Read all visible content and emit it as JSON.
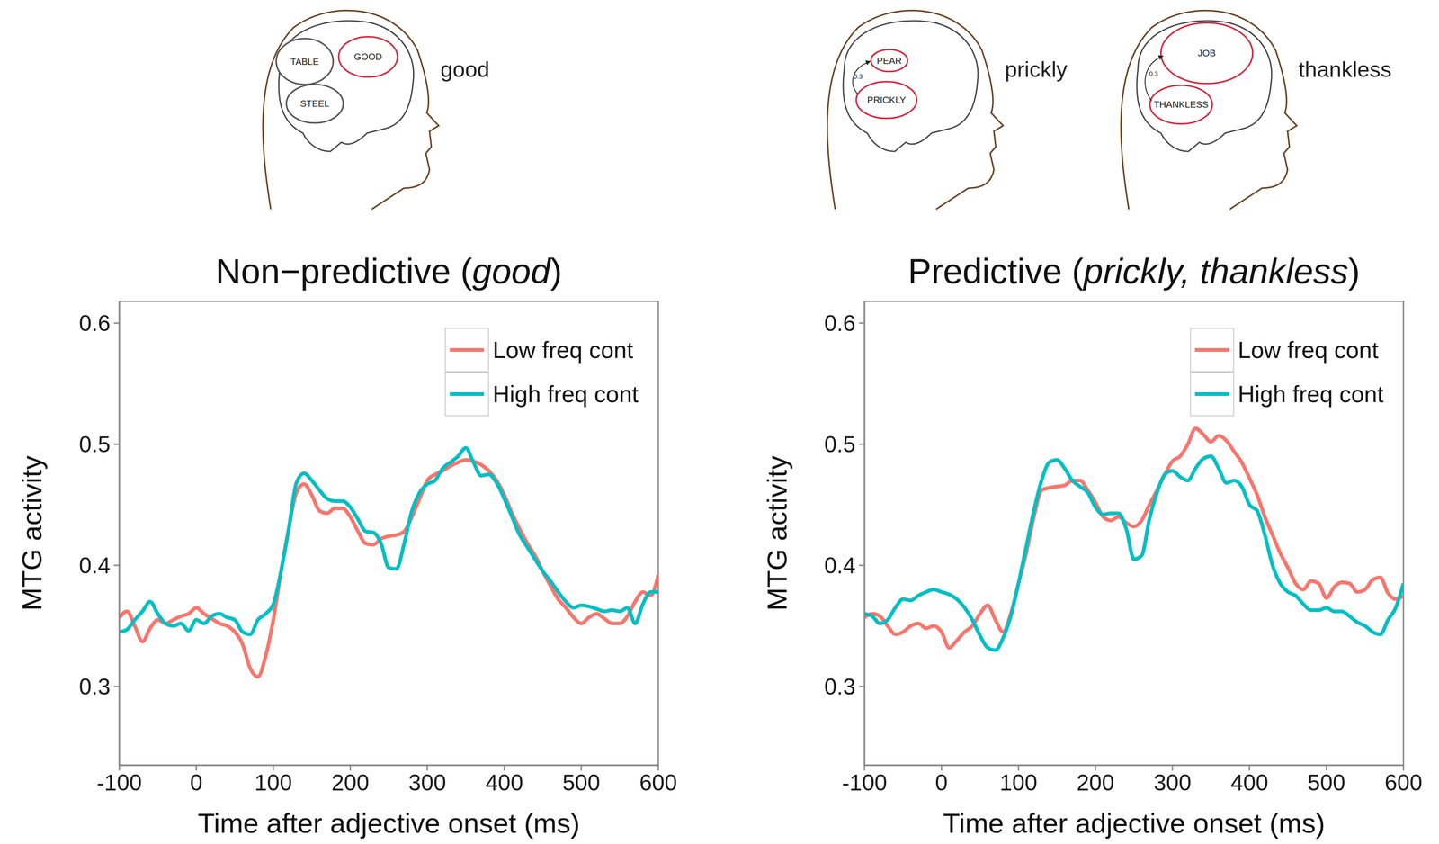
{
  "diagrams": [
    {
      "word": "good",
      "nodes": [
        {
          "label": "TABLE",
          "color": "#555555"
        },
        {
          "label": "GOOD",
          "color": "#d7263d"
        },
        {
          "label": "STEEL",
          "color": "#555555"
        }
      ]
    },
    {
      "word": "prickly",
      "nodes": [
        {
          "label": "PEAR",
          "color": "#d7263d"
        },
        {
          "label": "PRICKLY",
          "color": "#d7263d"
        }
      ],
      "edge": {
        "from": "PRICKLY",
        "to": "PEAR",
        "label": "0.3"
      }
    },
    {
      "word": "thankless",
      "nodes": [
        {
          "label": "JOB",
          "color": "#d7263d"
        },
        {
          "label": "THANKLESS",
          "color": "#d7263d"
        }
      ],
      "edge": {
        "from": "THANKLESS",
        "to": "JOB",
        "label": "0.3"
      }
    }
  ],
  "chart_data": [
    {
      "type": "line",
      "title": "Non−predictive (good)",
      "x_label": "Time after adjective onset (ms)",
      "y_label": "MTG activity",
      "legend": "top-right",
      "xlim": [
        -100,
        600
      ],
      "xticks": [
        -100,
        0,
        100,
        200,
        300,
        400,
        500,
        600
      ],
      "ylim": [
        0.235,
        0.618
      ],
      "yticks": [
        0.3,
        0.4,
        0.5,
        0.6
      ],
      "x": [
        -100,
        -90,
        -80,
        -70,
        -60,
        -50,
        -40,
        -30,
        -20,
        -10,
        0,
        10,
        20,
        30,
        40,
        50,
        60,
        70,
        80,
        90,
        100,
        110,
        120,
        130,
        140,
        150,
        160,
        170,
        180,
        190,
        200,
        210,
        220,
        230,
        240,
        250,
        260,
        270,
        280,
        290,
        300,
        310,
        320,
        330,
        340,
        350,
        360,
        370,
        380,
        390,
        400,
        410,
        420,
        430,
        440,
        450,
        460,
        470,
        480,
        490,
        500,
        510,
        520,
        530,
        540,
        550,
        560,
        570,
        580,
        590,
        600
      ],
      "series": [
        {
          "name": "Low freq cont",
          "color": "#F8766D",
          "values": [
            0.357,
            0.362,
            0.35,
            0.337,
            0.348,
            0.355,
            0.352,
            0.355,
            0.358,
            0.36,
            0.365,
            0.36,
            0.356,
            0.352,
            0.35,
            0.345,
            0.335,
            0.315,
            0.308,
            0.325,
            0.355,
            0.395,
            0.43,
            0.46,
            0.467,
            0.458,
            0.445,
            0.443,
            0.447,
            0.447,
            0.44,
            0.428,
            0.418,
            0.417,
            0.422,
            0.424,
            0.425,
            0.428,
            0.44,
            0.455,
            0.47,
            0.475,
            0.478,
            0.482,
            0.485,
            0.487,
            0.486,
            0.483,
            0.478,
            0.47,
            0.458,
            0.443,
            0.43,
            0.418,
            0.408,
            0.395,
            0.383,
            0.372,
            0.365,
            0.357,
            0.352,
            0.357,
            0.36,
            0.356,
            0.352,
            0.352,
            0.358,
            0.37,
            0.378,
            0.375,
            0.392
          ]
        },
        {
          "name": "High freq cont",
          "color": "#00BFC4",
          "values": [
            0.345,
            0.347,
            0.355,
            0.362,
            0.37,
            0.36,
            0.352,
            0.35,
            0.352,
            0.346,
            0.355,
            0.352,
            0.358,
            0.36,
            0.357,
            0.355,
            0.345,
            0.343,
            0.355,
            0.36,
            0.368,
            0.395,
            0.43,
            0.468,
            0.476,
            0.47,
            0.462,
            0.455,
            0.453,
            0.453,
            0.448,
            0.438,
            0.428,
            0.427,
            0.418,
            0.398,
            0.397,
            0.418,
            0.445,
            0.46,
            0.467,
            0.47,
            0.48,
            0.485,
            0.49,
            0.497,
            0.485,
            0.474,
            0.475,
            0.468,
            0.455,
            0.44,
            0.425,
            0.415,
            0.405,
            0.395,
            0.387,
            0.378,
            0.37,
            0.365,
            0.367,
            0.366,
            0.364,
            0.362,
            0.363,
            0.362,
            0.365,
            0.352,
            0.368,
            0.378,
            0.378
          ]
        }
      ]
    },
    {
      "type": "line",
      "title": "Predictive (prickly, thankless)",
      "x_label": "Time after adjective onset (ms)",
      "y_label": "MTG activity",
      "legend": "top-right",
      "xlim": [
        -100,
        600
      ],
      "xticks": [
        -100,
        0,
        100,
        200,
        300,
        400,
        500,
        600
      ],
      "ylim": [
        0.235,
        0.618
      ],
      "yticks": [
        0.3,
        0.4,
        0.5,
        0.6
      ],
      "x": [
        -100,
        -90,
        -80,
        -70,
        -60,
        -50,
        -40,
        -30,
        -20,
        -10,
        0,
        10,
        20,
        30,
        40,
        50,
        60,
        70,
        80,
        90,
        100,
        110,
        120,
        130,
        140,
        150,
        160,
        170,
        180,
        190,
        200,
        210,
        220,
        230,
        240,
        250,
        260,
        270,
        280,
        290,
        300,
        310,
        320,
        330,
        340,
        350,
        360,
        370,
        380,
        390,
        400,
        410,
        420,
        430,
        440,
        450,
        460,
        470,
        480,
        490,
        500,
        510,
        520,
        530,
        540,
        550,
        560,
        570,
        580,
        590,
        600
      ],
      "series": [
        {
          "name": "Low freq cont",
          "color": "#F8766D",
          "values": [
            0.357,
            0.36,
            0.358,
            0.35,
            0.343,
            0.345,
            0.35,
            0.352,
            0.348,
            0.35,
            0.345,
            0.332,
            0.338,
            0.345,
            0.35,
            0.36,
            0.367,
            0.355,
            0.345,
            0.36,
            0.385,
            0.41,
            0.44,
            0.462,
            0.464,
            0.465,
            0.466,
            0.47,
            0.47,
            0.462,
            0.452,
            0.44,
            0.437,
            0.44,
            0.435,
            0.432,
            0.437,
            0.45,
            0.462,
            0.475,
            0.486,
            0.49,
            0.5,
            0.513,
            0.508,
            0.502,
            0.507,
            0.503,
            0.494,
            0.485,
            0.472,
            0.458,
            0.44,
            0.425,
            0.41,
            0.398,
            0.385,
            0.38,
            0.387,
            0.385,
            0.373,
            0.382,
            0.386,
            0.385,
            0.378,
            0.38,
            0.388,
            0.39,
            0.377,
            0.372,
            0.375
          ]
        },
        {
          "name": "High freq cont",
          "color": "#00BFC4",
          "values": [
            0.36,
            0.358,
            0.352,
            0.355,
            0.365,
            0.372,
            0.371,
            0.375,
            0.378,
            0.38,
            0.378,
            0.376,
            0.372,
            0.365,
            0.355,
            0.342,
            0.332,
            0.33,
            0.34,
            0.358,
            0.385,
            0.415,
            0.445,
            0.47,
            0.485,
            0.487,
            0.48,
            0.47,
            0.465,
            0.46,
            0.448,
            0.442,
            0.443,
            0.443,
            0.43,
            0.405,
            0.408,
            0.438,
            0.46,
            0.475,
            0.478,
            0.473,
            0.47,
            0.48,
            0.488,
            0.49,
            0.48,
            0.468,
            0.47,
            0.465,
            0.45,
            0.445,
            0.425,
            0.4,
            0.385,
            0.378,
            0.375,
            0.368,
            0.363,
            0.363,
            0.365,
            0.362,
            0.362,
            0.358,
            0.353,
            0.35,
            0.345,
            0.343,
            0.355,
            0.365,
            0.385
          ]
        }
      ]
    }
  ]
}
